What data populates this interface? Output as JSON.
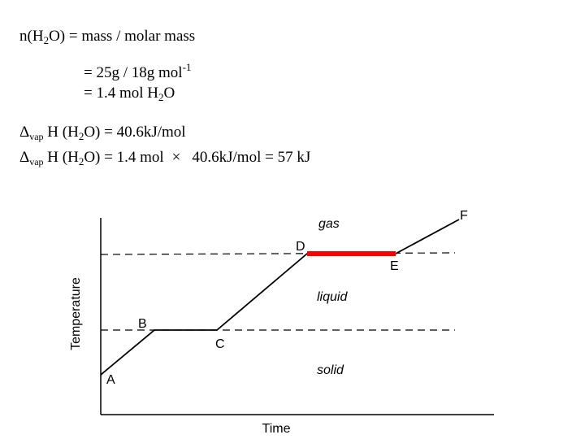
{
  "equations": {
    "moles": {
      "lhs_prefix": "n(H",
      "lhs_sub": "2",
      "lhs_suffix": "O) = mass / molar mass"
    },
    "step1": {
      "text": "= 25g / 18g mol",
      "sup": "-1"
    },
    "step2": {
      "text": "= 1.4 mol H",
      "sub": "2",
      "suffix": "O"
    },
    "delta1": {
      "symbol": "Δ",
      "sub": "vap",
      "mid": " H (H",
      "h2o_sub": "2",
      "rest": "O) = 40.6kJ/mol"
    },
    "delta2": {
      "symbol": "Δ",
      "sub": "vap",
      "mid": " H (H",
      "h2o_sub": "2",
      "rest1": "O) = 1.4 mol",
      "times": "×",
      "rest2": "40.6kJ/mol = 57 kJ"
    }
  },
  "diagram": {
    "ylabel": "Temperature",
    "xlabel": "Time",
    "regions": {
      "gas": "gas",
      "liquid": "liquid",
      "solid": "solid"
    },
    "points": {
      "A": "A",
      "B": "B",
      "C": "C",
      "D": "D",
      "E": "E",
      "F": "F"
    },
    "highlight_color": "#ff0000"
  }
}
